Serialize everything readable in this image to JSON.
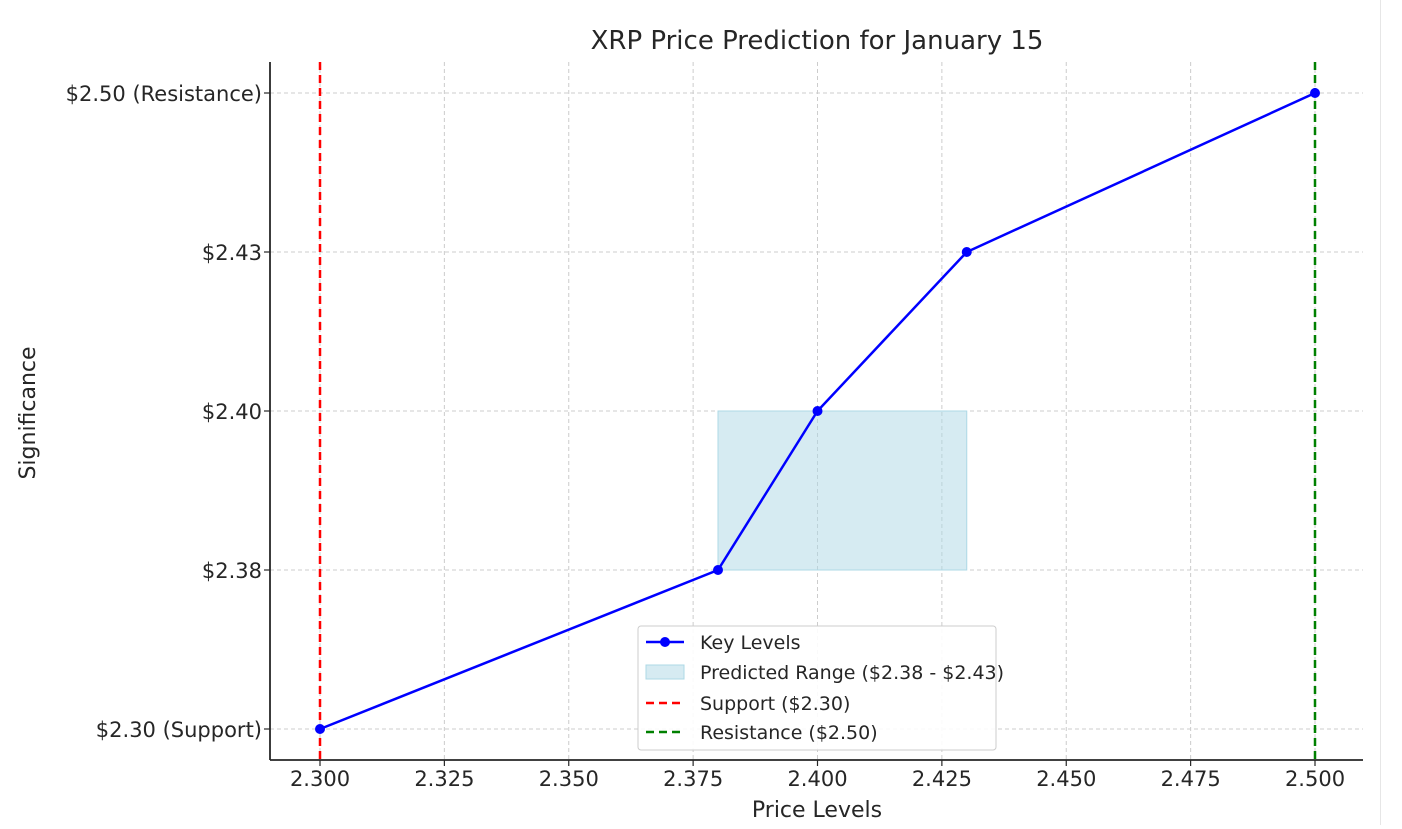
{
  "chart_data": {
    "type": "line",
    "title": "XRP Price Prediction for January 15",
    "xlabel": "Price Levels",
    "ylabel": "Significance",
    "xlim": [
      2.29,
      2.51
    ],
    "x_ticks": [
      2.3,
      2.325,
      2.35,
      2.375,
      2.4,
      2.425,
      2.45,
      2.475,
      2.5
    ],
    "x_tick_labels": [
      "2.300",
      "2.325",
      "2.350",
      "2.375",
      "2.400",
      "2.425",
      "2.450",
      "2.475",
      "2.500"
    ],
    "y_categories": [
      "$2.30 (Support)",
      "$2.38",
      "$2.40",
      "$2.43",
      "$2.50 (Resistance)"
    ],
    "grid": true,
    "legend_position": "lower center",
    "series": [
      {
        "name": "Key Levels",
        "color": "#0000ff",
        "marker": "circle",
        "points": [
          {
            "x": 2.3,
            "y": "$2.30 (Support)"
          },
          {
            "x": 2.38,
            "y": "$2.38"
          },
          {
            "x": 2.4,
            "y": "$2.40"
          },
          {
            "x": 2.43,
            "y": "$2.43"
          },
          {
            "x": 2.5,
            "y": "$2.50 (Resistance)"
          }
        ]
      }
    ],
    "shaded_region": {
      "name": "Predicted Range ($2.38 - $2.43)",
      "color": "#add8e6",
      "x_range": [
        2.38,
        2.43
      ],
      "y_range": [
        "$2.38",
        "$2.40"
      ]
    },
    "reference_lines": [
      {
        "name": "Support ($2.30)",
        "x": 2.3,
        "color": "#ff0000",
        "style": "dashed"
      },
      {
        "name": "Resistance ($2.50)",
        "x": 2.5,
        "color": "#008000",
        "style": "dashed"
      }
    ],
    "legend": [
      {
        "label": "Key Levels",
        "kind": "line-marker",
        "color": "#0000ff"
      },
      {
        "label": "Predicted Range ($2.38 - $2.43)",
        "kind": "patch",
        "color": "#add8e6"
      },
      {
        "label": "Support ($2.30)",
        "kind": "dashed",
        "color": "#ff0000"
      },
      {
        "label": "Resistance ($2.50)",
        "kind": "dashed",
        "color": "#008000"
      }
    ]
  }
}
